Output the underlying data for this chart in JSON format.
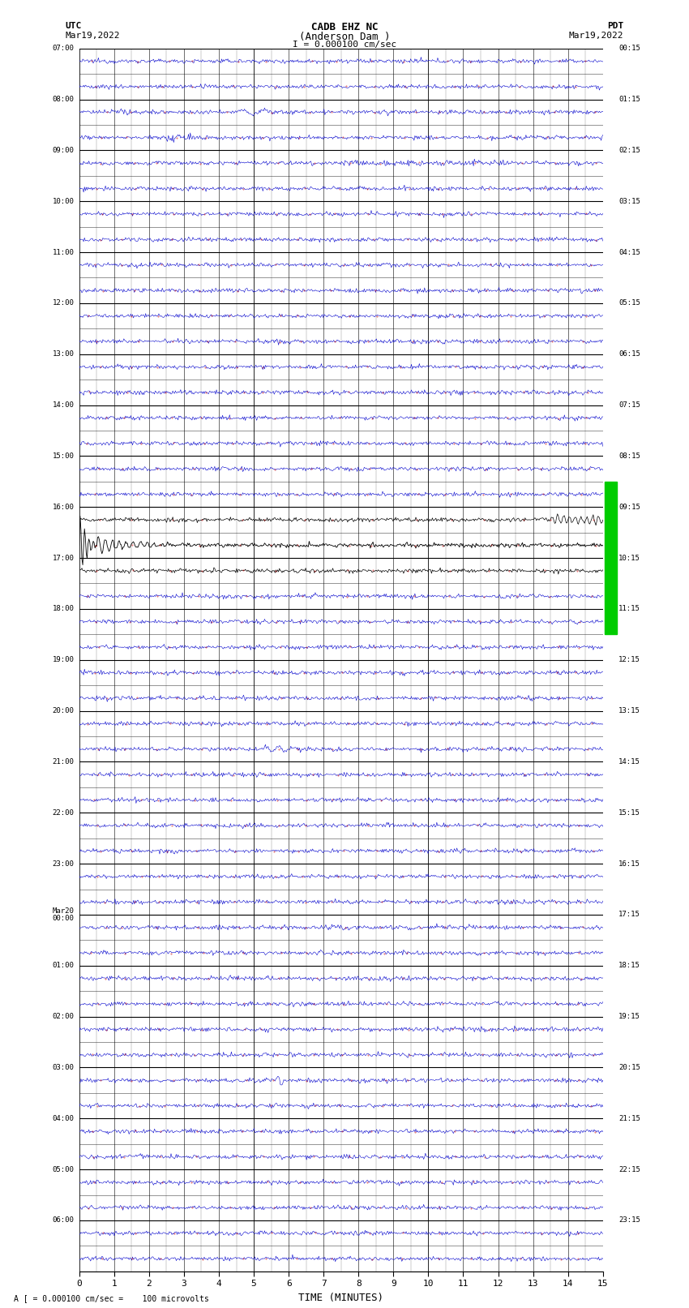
{
  "title_line1": "CADB EHZ NC",
  "title_line2": "(Anderson Dam )",
  "title_scale": "I = 0.000100 cm/sec",
  "label_utc": "UTC",
  "label_pdt": "PDT",
  "date_left": "Mar19,2022",
  "date_right": "Mar19,2022",
  "xlabel": "TIME (MINUTES)",
  "footer": "A [ = 0.000100 cm/sec =    100 microvolts",
  "x_max_minutes": 15,
  "bg_color": "#ffffff",
  "trace_color_normal": "#0000cc",
  "trace_color_event": "#000000",
  "trace_color_green": "#007700",
  "grid_major_color": "#000000",
  "grid_minor_color": "#999999",
  "green_bar_color": "#00cc00",
  "red_dot_color": "#cc0000",
  "utc_labels": [
    "07:00",
    "",
    "08:00",
    "",
    "09:00",
    "",
    "10:00",
    "",
    "11:00",
    "",
    "12:00",
    "",
    "13:00",
    "",
    "14:00",
    "",
    "15:00",
    "",
    "16:00",
    "",
    "17:00",
    "",
    "18:00",
    "",
    "19:00",
    "",
    "20:00",
    "",
    "21:00",
    "",
    "22:00",
    "",
    "23:00",
    "",
    "Mar20\n00:00",
    "",
    "01:00",
    "",
    "02:00",
    "",
    "03:00",
    "",
    "04:00",
    "",
    "05:00",
    "",
    "06:00",
    ""
  ],
  "pdt_labels": [
    "00:15",
    "",
    "01:15",
    "",
    "02:15",
    "",
    "03:15",
    "",
    "04:15",
    "",
    "05:15",
    "",
    "06:15",
    "",
    "07:15",
    "",
    "08:15",
    "",
    "09:15",
    "",
    "10:15",
    "",
    "11:15",
    "",
    "12:15",
    "",
    "13:15",
    "",
    "14:15",
    "",
    "15:15",
    "",
    "16:15",
    "",
    "17:15",
    "",
    "18:15",
    "",
    "19:15",
    "",
    "20:15",
    "",
    "21:15",
    "",
    "22:15",
    "",
    "23:15",
    ""
  ]
}
